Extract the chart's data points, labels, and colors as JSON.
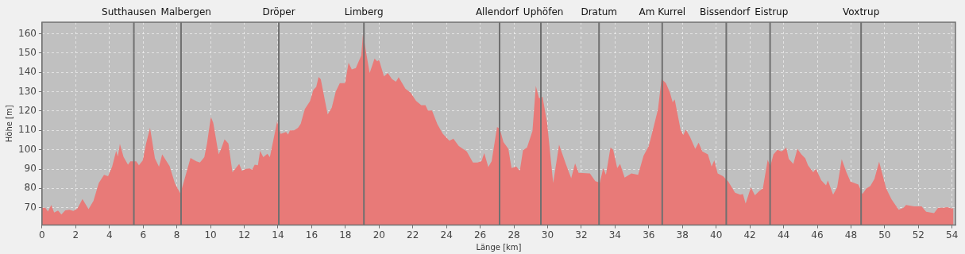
{
  "chart_data": {
    "type": "area",
    "xlabel": "Länge [km]",
    "ylabel": "Höhe [m]",
    "color": "#e87a78",
    "grid": true,
    "legend": false,
    "xlim": [
      0,
      54.2
    ],
    "ylim": [
      61,
      166
    ],
    "xticks": [
      0,
      2,
      4,
      6,
      8,
      10,
      12,
      14,
      16,
      18,
      20,
      22,
      24,
      26,
      28,
      30,
      32,
      34,
      36,
      38,
      40,
      42,
      44,
      46,
      48,
      50,
      52,
      54
    ],
    "yticks": [
      70,
      80,
      90,
      100,
      110,
      120,
      130,
      140,
      150,
      160
    ],
    "x": [
      0,
      0.2,
      0.35,
      0.55,
      0.72,
      0.95,
      1.15,
      1.38,
      1.62,
      1.86,
      2.1,
      2.4,
      2.76,
      3.05,
      3.37,
      3.68,
      3.92,
      4.16,
      4.4,
      4.5,
      4.62,
      4.84,
      5.1,
      5.24,
      5.59,
      5.75,
      5.98,
      6.17,
      6.41,
      6.7,
      6.94,
      7.13,
      7.57,
      7.89,
      8.21,
      8.4,
      8.81,
      9.16,
      9.37,
      9.63,
      9.79,
      10.02,
      10.16,
      10.48,
      10.63,
      10.83,
      11.06,
      11.3,
      11.7,
      11.86,
      12.1,
      12.33,
      12.46,
      12.62,
      12.81,
      12.94,
      13.13,
      13.37,
      13.52,
      13.95,
      14.16,
      14.48,
      14.6,
      14.71,
      14.95,
      15.19,
      15.35,
      15.59,
      15.9,
      16.1,
      16.27,
      16.41,
      16.54,
      16.95,
      17.19,
      17.43,
      17.67,
      17.98,
      18.19,
      18.38,
      18.62,
      18.94,
      19.05,
      19.17,
      19.44,
      19.73,
      19.89,
      20,
      20.29,
      20.52,
      20.76,
      21,
      21.16,
      21.56,
      21.87,
      22.19,
      22.5,
      22.75,
      22.9,
      23.14,
      23.46,
      23.78,
      24.17,
      24.41,
      24.73,
      25.2,
      25.57,
      25.84,
      26.08,
      26.24,
      26.48,
      26.68,
      27,
      27.16,
      27.38,
      27.67,
      27.86,
      28.14,
      28.35,
      28.54,
      28.78,
      29.1,
      29.3,
      29.49,
      29.7,
      29.97,
      30.33,
      30.68,
      31.08,
      31.4,
      31.63,
      31.84,
      32.51,
      32.83,
      33.1,
      33.3,
      33.46,
      33.73,
      33.89,
      34.13,
      34.3,
      34.57,
      34.97,
      35.37,
      35.69,
      36,
      36.31,
      36.55,
      36.76,
      37.02,
      37.26,
      37.42,
      37.54,
      37.89,
      38.05,
      38.2,
      38.44,
      38.76,
      38.96,
      39.18,
      39.51,
      39.73,
      39.89,
      40.09,
      40.41,
      40.72,
      41.12,
      41.43,
      41.59,
      41.75,
      42.06,
      42.3,
      42.58,
      42.77,
      43.06,
      43.21,
      43.4,
      43.64,
      43.87,
      44.03,
      44.16,
      44.31,
      44.58,
      44.82,
      45.06,
      45.29,
      45.45,
      45.76,
      45.92,
      46.24,
      46.52,
      46.63,
      46.94,
      47.18,
      47.45,
      47.73,
      47.97,
      48.44,
      48.68,
      48.91,
      49.15,
      49.39,
      49.67,
      50.09,
      50.41,
      50.83,
      51.12,
      51.27,
      51.75,
      52.19,
      52.46,
      52.93,
      53.17,
      53.48,
      53.72,
      53.95,
      54.08
    ],
    "values": [
      70,
      70,
      68,
      71.4,
      67.5,
      68.5,
      66.5,
      68.6,
      69,
      68.3,
      69.6,
      74.5,
      69.3,
      73.5,
      82.8,
      87,
      86.3,
      91.2,
      99.4,
      96.5,
      103,
      96.3,
      92.3,
      94,
      94,
      92,
      94.5,
      103,
      111.4,
      95.5,
      91.2,
      97.6,
      91.5,
      82.5,
      77.4,
      83,
      95.8,
      94,
      93.4,
      96.2,
      103.3,
      117,
      113.9,
      97.6,
      100.5,
      105.4,
      103.3,
      88.4,
      92.7,
      89.1,
      90.1,
      90.3,
      89.6,
      92.3,
      92,
      99.4,
      96.2,
      97.9,
      96.2,
      114.6,
      108.2,
      109.2,
      107.9,
      110,
      110,
      111.4,
      113.4,
      121,
      125.1,
      131,
      132.5,
      137.7,
      136.5,
      118.2,
      121.7,
      130.2,
      134.5,
      134.5,
      145.1,
      141.6,
      142.3,
      148.7,
      160.4,
      153.6,
      139.7,
      147.2,
      145.8,
      146.5,
      138,
      139.7,
      136.6,
      135.2,
      137.6,
      131.6,
      129.5,
      125.3,
      123.1,
      123.1,
      120.3,
      120.3,
      113.2,
      108.3,
      104.7,
      105.7,
      101.9,
      99.1,
      93.4,
      93.4,
      94.1,
      98.3,
      91,
      94.1,
      111.8,
      110.8,
      104,
      100.5,
      90.5,
      91.3,
      89.1,
      99.8,
      101.2,
      109.7,
      133,
      126.7,
      127.4,
      113.9,
      82.8,
      102.6,
      92.7,
      85.3,
      93,
      88.1,
      87.7,
      83.7,
      83,
      90.5,
      87,
      101.2,
      100,
      90.5,
      92.7,
      85.6,
      87.7,
      87,
      96.9,
      101.9,
      112.5,
      121,
      136.6,
      134.5,
      129.5,
      124.6,
      126,
      110.4,
      107.6,
      110.4,
      106.8,
      100.5,
      103.7,
      99.1,
      97.6,
      91.3,
      94.5,
      87.7,
      86.3,
      83.5,
      77.8,
      76.8,
      77.1,
      72.1,
      80.6,
      76.4,
      78.8,
      79.9,
      94.8,
      91.3,
      97.6,
      100,
      99.1,
      100,
      101.2,
      95.2,
      92.7,
      100.5,
      97.6,
      95.5,
      92,
      88.4,
      90.1,
      84.2,
      81.6,
      84.2,
      76.8,
      80.6,
      95.1,
      88.4,
      83.5,
      82,
      77.1,
      79.9,
      81.3,
      84.9,
      93.8,
      79.9,
      74.3,
      68.9,
      70,
      71.4,
      70.7,
      70.7,
      67.9,
      67.2,
      70,
      70,
      70.3,
      69.7,
      69.7
    ],
    "ref_lines": [
      {
        "axis": "x",
        "value": 5.45,
        "label": "Sutthausen",
        "color": "#707070"
      },
      {
        "axis": "x",
        "value": 8.25,
        "label": "Malbergen",
        "color": "#707070"
      },
      {
        "axis": "x",
        "value": 14.05,
        "label": "Dröper",
        "color": "#707070"
      },
      {
        "axis": "x",
        "value": 19.1,
        "label": "Limberg",
        "color": "#707070"
      },
      {
        "axis": "x",
        "value": 27.15,
        "label": "Allendorf",
        "color": "#707070"
      },
      {
        "axis": "x",
        "value": 29.6,
        "label": "Uphöfen",
        "color": "#707070"
      },
      {
        "axis": "x",
        "value": 33.05,
        "label": "Dratum",
        "color": "#707070"
      },
      {
        "axis": "x",
        "value": 36.8,
        "label": "Am Kurrel",
        "color": "#707070"
      },
      {
        "axis": "x",
        "value": 40.6,
        "label": "Bissendorf",
        "color": "#707070"
      },
      {
        "axis": "x",
        "value": 43.2,
        "label": "Eistrup",
        "color": "#707070"
      },
      {
        "axis": "x",
        "value": 48.6,
        "label": "Voxtrup",
        "color": "#707070"
      }
    ]
  }
}
